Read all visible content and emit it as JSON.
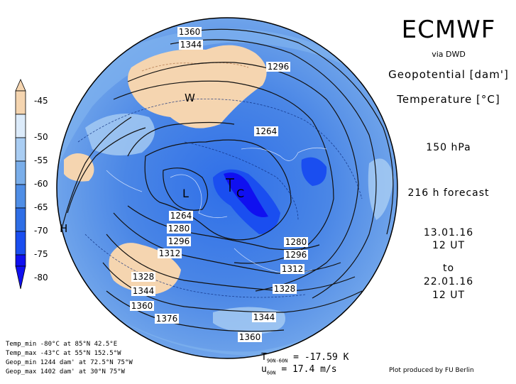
{
  "header": {
    "title": "ECMWF",
    "source": "via DWD",
    "var_geopotential": "Geopotential [dam']",
    "var_temperature": "Temperature [°C]",
    "level": "150 hPa",
    "forecast": "216 h forecast",
    "init_date": "13.01.16",
    "init_time": "12 UT",
    "to_label": "to",
    "valid_date": "22.01.16",
    "valid_time": "12 UT"
  },
  "colorbar": {
    "labels": [
      "-45",
      "-50",
      "-55",
      "-60",
      "-65",
      "-70",
      "-75",
      "-80"
    ],
    "colors": [
      "#f5d5b0",
      "#dcebfa",
      "#a9cdf3",
      "#7aaeea",
      "#4f8ee6",
      "#2e6ee6",
      "#1a4ef0",
      "#1010f0"
    ]
  },
  "stats": {
    "temp_min": "Temp_min -80°C at 85°N 42.5°E",
    "temp_max": "Temp_max -43°C at 55°N 152.5°W",
    "geop_min": "Geop_min 1244 dam' at 72.5°N 75°W",
    "geop_max": "Geop_max 1402 dam' at 30°N 75°W"
  },
  "footer": {
    "t_mean_prefix": "T",
    "t_mean_sub": "90N-60N",
    "t_mean_value": "= -17.59 K",
    "u_prefix": "u",
    "u_sub": "60N",
    "u_value": "= 17.4 m/s",
    "credit": "Plot produced by FU Berlin"
  },
  "map": {
    "markers": {
      "low": "L",
      "high": "H",
      "warm": "W",
      "cold": "C"
    },
    "contour_labels": [
      "1360",
      "1344",
      "1296",
      "1264",
      "1264",
      "1280",
      "1296",
      "1312",
      "1328",
      "1344",
      "1360",
      "1376",
      "1280",
      "1296",
      "1312",
      "1328",
      "1344",
      "1360"
    ]
  }
}
